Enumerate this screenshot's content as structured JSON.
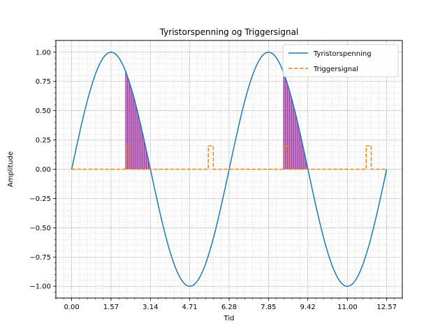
{
  "chart_data": {
    "type": "line",
    "title": "Tyristorspenning og Triggersignal",
    "xlabel": "Tid",
    "ylabel": "Amplitude",
    "xlim": [
      -0.63,
      13.19
    ],
    "ylim": [
      -1.1,
      1.1
    ],
    "grid": true,
    "grid_minor": true,
    "legend_position": "top-right",
    "xticks": [
      0.0,
      1.57,
      3.14,
      4.71,
      6.28,
      7.85,
      9.42,
      11.0,
      12.57
    ],
    "xtick_labels": [
      "0.00",
      "1.57",
      "3.14",
      "4.71",
      "6.28",
      "7.85",
      "9.42",
      "11.00",
      "12.57"
    ],
    "yticks": [
      -1.0,
      -0.75,
      -0.5,
      -0.25,
      0.0,
      0.25,
      0.5,
      0.75,
      1.0
    ],
    "ytick_labels": [
      "−1.00",
      "−0.75",
      "−0.50",
      "−0.25",
      "0.00",
      "0.25",
      "0.50",
      "0.75",
      "1.00"
    ],
    "series": [
      {
        "name": "Tyristorspenning",
        "color": "#1f77b4",
        "style": "solid",
        "function": "sin(t)",
        "x_range": [
          0,
          12.566
        ]
      },
      {
        "name": "Triggersignal",
        "color": "#ff7f0e",
        "style": "dashed",
        "baseline": 0.0,
        "pulse_height": 0.2,
        "pulses": [
          [
            2.15,
            2.35
          ],
          [
            5.45,
            5.65
          ],
          [
            8.45,
            8.65
          ],
          [
            11.75,
            11.95
          ]
        ],
        "x_range": [
          0,
          12.566
        ]
      }
    ],
    "shaded_regions": [
      {
        "x_start": 2.15,
        "x_end": 3.1416,
        "color": "#9b30a0"
      },
      {
        "x_start": 8.45,
        "x_end": 9.4248,
        "color": "#9b30a0"
      }
    ]
  }
}
